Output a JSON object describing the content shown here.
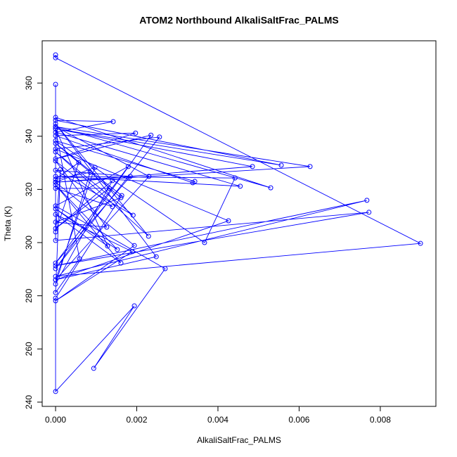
{
  "chart_data": {
    "type": "line",
    "title": "ATOM2 Northbound AlkaliSaltFrac_PALMS",
    "x_label": "AlkaliSaltFrac_PALMS",
    "y_label": "Theta (K)",
    "xlim": [
      -0.00033,
      0.00937
    ],
    "ylim": [
      238.4,
      375.9
    ],
    "xticks": [
      {
        "value": 0,
        "label": "0.000"
      },
      {
        "value": 0.002,
        "label": "0.002"
      },
      {
        "value": 0.004,
        "label": "0.004"
      },
      {
        "value": 0.006,
        "label": "0.006"
      },
      {
        "value": 0.008,
        "label": "0.008"
      }
    ],
    "yticks": [
      240,
      260,
      280,
      300,
      320,
      340,
      360
    ],
    "series": [
      {
        "color": "#0000ff",
        "x": [
          0,
          0,
          0.00899,
          0,
          0.00767,
          0,
          0.00772,
          0,
          0,
          0,
          0.0053,
          0,
          0.00627,
          0,
          0.00485,
          0,
          0.00556,
          0,
          0.00142,
          0,
          0.00455,
          0,
          0.00442,
          0.00367,
          0,
          0.00343,
          0.00338,
          0,
          0.00197,
          0,
          0.00235,
          0,
          0.00256,
          0,
          0.00426,
          0,
          0.00248,
          0,
          0.00229,
          0,
          0.00191,
          0,
          0.00184,
          0,
          0.00179,
          0,
          0.0027,
          0.00094,
          0.00194,
          0,
          0,
          0.00163,
          0,
          0.00161,
          0,
          0.00126,
          0,
          0.0014,
          0,
          0.00132,
          0,
          0.0014,
          0,
          0.00085,
          0,
          0.00057,
          0,
          0.00012,
          0,
          0.00059,
          0,
          0.00128,
          0,
          0.00152,
          0,
          0.00161,
          0,
          0.00189,
          0,
          0.00194,
          0,
          0.00097,
          0,
          0.0023,
          0
        ],
        "values": [
          370.6,
          369.5,
          299.7,
          287.3,
          315.9,
          291.3,
          311.4,
          300.8,
          359.5,
          347.1,
          320.6,
          343.6,
          328.6,
          322.7,
          328.6,
          342.8,
          329.1,
          346.0,
          345.5,
          341.5,
          321.2,
          324.9,
          324.3,
          300,
          338.3,
          323,
          322.5,
          340.2,
          341.2,
          331.5,
          340.4,
          290.2,
          339.7,
          335.2,
          308.2,
          286.0,
          294.7,
          344.7,
          302.4,
          334.1,
          310.3,
          327.2,
          324.9,
          292.3,
          328.6,
          313.8,
          290.2,
          252.7,
          276.2,
          244,
          279.1,
          317.7,
          337.3,
          316.9,
          307.7,
          305.8,
          330.7,
          313.5,
          320.4,
          320.4,
          305.3,
          323.3,
          284.4,
          326.4,
          323.8,
          330.1,
          304,
          327.5,
          281.2,
          293.9,
          342.8,
          298.7,
          312.7,
          297.4,
          321.7,
          292.3,
          310.6,
          296.6,
          278.1,
          298.9,
          322.7,
          328.3,
          286.0,
          324.9,
          343.6
        ]
      }
    ]
  }
}
